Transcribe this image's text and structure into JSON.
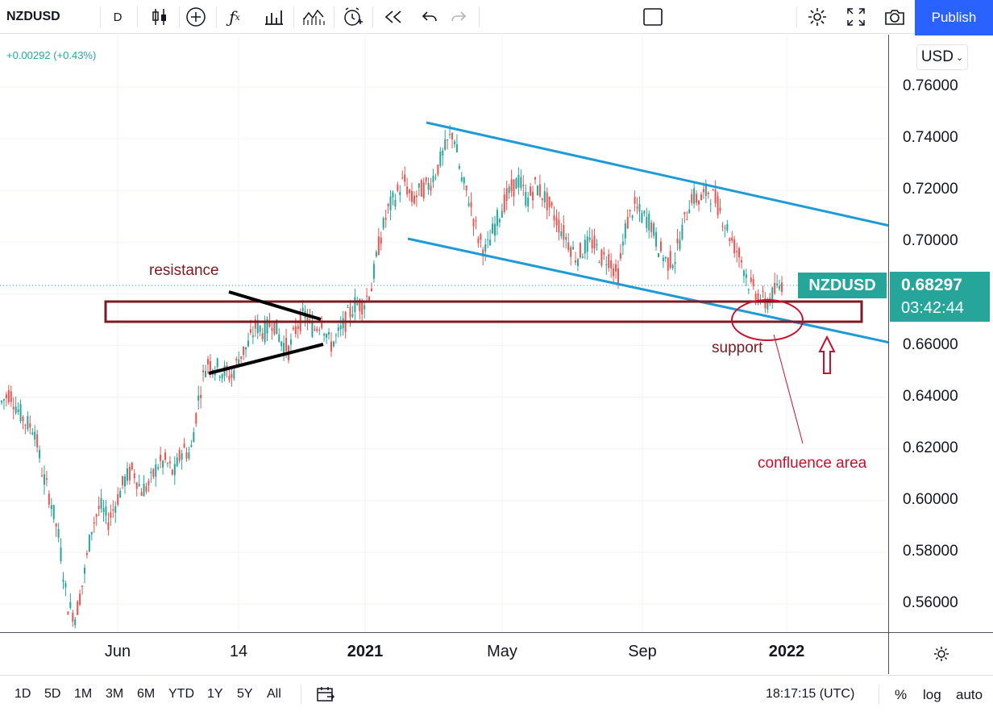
{
  "toolbar": {
    "symbol": "NZDUSD",
    "interval": "D",
    "publish_label": "Publish",
    "icons": [
      "candles-icon",
      "add-indicator-icon",
      "fx-icon",
      "bar-chart-icon",
      "compare-icon",
      "alert-icon",
      "replay-icon",
      "undo-icon",
      "redo-icon",
      "layout-icon",
      "settings-icon",
      "fullscreen-icon",
      "camera-icon"
    ]
  },
  "legend": {
    "change": "+0.00292 (+0.43%)"
  },
  "price_scale": {
    "currency": "USD",
    "ticks": [
      "0.76000",
      "0.74000",
      "0.72000",
      "0.70000",
      "0.66000",
      "0.64000",
      "0.62000",
      "0.60000",
      "0.58000",
      "0.56000"
    ]
  },
  "badges": {
    "symbol": "NZDUSD",
    "price": "0.68297",
    "countdown": "03:42:44"
  },
  "time_axis": {
    "ticks": [
      "Jun",
      "14",
      "2021",
      "May",
      "Sep",
      "2022"
    ]
  },
  "annotations": {
    "resistance": "resistance",
    "support": "support",
    "confluence": "confluence area"
  },
  "bottom_bar": {
    "ranges": [
      "1D",
      "5D",
      "1M",
      "3M",
      "6M",
      "YTD",
      "1Y",
      "5Y",
      "All"
    ],
    "clock": "18:17:15 (UTC)",
    "percent": "%",
    "log": "log",
    "auto": "auto"
  },
  "colors": {
    "up": "#26a69a",
    "down": "#ef5350",
    "channel": "#1e9bd7",
    "zone": "#7b1b22",
    "annotation_red": "#c8102e",
    "accent": "#2962ff"
  },
  "chart_data": {
    "type": "candlestick",
    "symbol": "NZDUSD",
    "timeframe": "D",
    "ylim": [
      0.55,
      0.77
    ],
    "x_ticks": [
      "Jun",
      "14",
      "2021",
      "May",
      "Sep",
      "2022"
    ],
    "y_ticks": [
      0.76,
      0.74,
      0.72,
      0.7,
      0.66,
      0.64,
      0.62,
      0.6,
      0.58,
      0.56
    ],
    "last_price": 0.68297,
    "price_path": [
      [
        0.638,
        0.642
      ],
      [
        0.635,
        0.63
      ],
      [
        0.628,
        0.61
      ],
      [
        0.6,
        0.585
      ],
      [
        0.56,
        0.555
      ],
      [
        0.57,
        0.59
      ],
      [
        0.598,
        0.592
      ],
      [
        0.6,
        0.608
      ],
      [
        0.612,
        0.604
      ],
      [
        0.606,
        0.614
      ],
      [
        0.615,
        0.61
      ],
      [
        0.62,
        0.618
      ],
      [
        0.64,
        0.654
      ],
      [
        0.652,
        0.65
      ],
      [
        0.648,
        0.656
      ],
      [
        0.66,
        0.668
      ],
      [
        0.665,
        0.67
      ],
      [
        0.662,
        0.658
      ],
      [
        0.668,
        0.672
      ],
      [
        0.666,
        0.67
      ],
      [
        0.66,
        0.664
      ],
      [
        0.67,
        0.676
      ],
      [
        0.676,
        0.682
      ],
      [
        0.7,
        0.712
      ],
      [
        0.718,
        0.724
      ],
      [
        0.716,
        0.72
      ],
      [
        0.722,
        0.728
      ],
      [
        0.736,
        0.743
      ],
      [
        0.724,
        0.716
      ],
      [
        0.702,
        0.696
      ],
      [
        0.706,
        0.714
      ],
      [
        0.72,
        0.724
      ],
      [
        0.716,
        0.722
      ],
      [
        0.718,
        0.712
      ],
      [
        0.706,
        0.7
      ],
      [
        0.694,
        0.698
      ],
      [
        0.7,
        0.694
      ],
      [
        0.694,
        0.686
      ],
      [
        0.706,
        0.714
      ],
      [
        0.71,
        0.708
      ],
      [
        0.698,
        0.692
      ],
      [
        0.694,
        0.706
      ],
      [
        0.718,
        0.716
      ],
      [
        0.72,
        0.716
      ],
      [
        0.708,
        0.7
      ],
      [
        0.694,
        0.684
      ],
      [
        0.68,
        0.676
      ],
      [
        0.68,
        0.684
      ]
    ],
    "annotations": [
      {
        "type": "channel_line",
        "points": [
          [
            0.746,
            "Feb 2021"
          ],
          [
            0.701,
            "end"
          ]
        ]
      },
      {
        "type": "channel_line",
        "points": [
          [
            0.7,
            "Jan 2021"
          ],
          [
            0.658,
            "end"
          ]
        ]
      },
      {
        "type": "zone",
        "label": "resistance / support",
        "range": [
          0.668,
          0.676
        ]
      }
    ]
  }
}
